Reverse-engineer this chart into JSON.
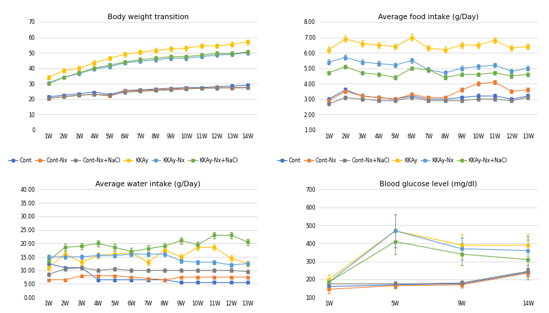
{
  "bw_weeks": [
    "1W",
    "2W",
    "3W",
    "4W",
    "5W",
    "6W",
    "7W",
    "8W",
    "9W",
    "10W",
    "11W",
    "12W",
    "13W",
    "14W"
  ],
  "bw_cont": [
    21.5,
    22.5,
    23.5,
    24.5,
    23.0,
    25.5,
    26.0,
    26.5,
    27.0,
    27.5,
    27.5,
    28.0,
    28.5,
    29.0
  ],
  "bw_cont_nx": [
    20.5,
    21.5,
    22.5,
    23.0,
    22.0,
    25.0,
    25.5,
    26.0,
    26.5,
    27.0,
    27.0,
    27.5,
    27.0,
    27.5
  ],
  "bw_cont_nacl": [
    20.5,
    21.5,
    22.5,
    23.0,
    22.5,
    24.5,
    25.0,
    25.5,
    26.0,
    26.5,
    27.0,
    27.0,
    27.5,
    27.5
  ],
  "bw_kkay": [
    34.0,
    38.5,
    40.0,
    43.5,
    46.5,
    49.0,
    50.5,
    51.5,
    52.5,
    53.0,
    54.5,
    54.5,
    55.5,
    57.0
  ],
  "bw_kkay_nx": [
    30.5,
    34.0,
    36.5,
    39.5,
    41.0,
    43.5,
    44.5,
    45.5,
    46.5,
    46.5,
    47.5,
    48.5,
    49.0,
    50.0
  ],
  "bw_kkay_nacl": [
    30.0,
    34.0,
    37.0,
    40.0,
    42.0,
    44.0,
    45.5,
    46.5,
    47.5,
    47.5,
    48.5,
    49.5,
    49.5,
    50.5
  ],
  "bw_err_cont": [
    0.5,
    0.5,
    0.5,
    0.5,
    0.5,
    0.5,
    0.5,
    0.5,
    0.5,
    0.5,
    0.5,
    0.5,
    0.5,
    0.5
  ],
  "bw_err_cont_nx": [
    0.4,
    0.4,
    0.4,
    0.4,
    0.4,
    0.4,
    0.4,
    0.4,
    0.4,
    0.4,
    0.4,
    0.4,
    0.4,
    0.4
  ],
  "bw_err_cont_nacl": [
    0.4,
    0.4,
    0.4,
    0.4,
    0.4,
    0.4,
    0.4,
    0.4,
    0.4,
    0.4,
    0.4,
    0.4,
    0.4,
    0.4
  ],
  "bw_err_kkay": [
    1.2,
    1.2,
    1.5,
    1.5,
    1.5,
    1.5,
    1.5,
    1.5,
    1.5,
    1.5,
    1.5,
    1.5,
    1.5,
    1.5
  ],
  "bw_err_kkay_nx": [
    1.0,
    1.0,
    1.2,
    1.2,
    1.2,
    1.2,
    1.2,
    1.2,
    1.2,
    1.2,
    1.2,
    1.2,
    1.2,
    1.2
  ],
  "bw_err_kkay_nacl": [
    1.0,
    1.0,
    1.2,
    1.2,
    1.2,
    1.2,
    1.2,
    1.2,
    1.2,
    1.2,
    1.2,
    1.2,
    1.2,
    1.2
  ],
  "fi_weeks": [
    "1W",
    "2W",
    "3W",
    "4W",
    "5W",
    "6W",
    "7W",
    "8W",
    "9W",
    "10W",
    "11W",
    "12W",
    "13W"
  ],
  "fi_cont": [
    3.0,
    3.6,
    3.2,
    3.1,
    3.0,
    3.2,
    3.0,
    3.0,
    3.1,
    3.2,
    3.2,
    3.0,
    3.2
  ],
  "fi_cont_nx": [
    2.9,
    3.5,
    3.2,
    3.1,
    3.0,
    3.3,
    3.1,
    3.1,
    3.6,
    4.0,
    4.1,
    3.5,
    3.6
  ],
  "fi_cont_nacl": [
    2.7,
    3.1,
    3.0,
    2.9,
    2.9,
    3.1,
    2.9,
    2.9,
    2.9,
    3.0,
    3.0,
    2.9,
    3.1
  ],
  "fi_kkay": [
    6.2,
    6.9,
    6.6,
    6.5,
    6.4,
    7.0,
    6.3,
    6.2,
    6.5,
    6.5,
    6.8,
    6.3,
    6.4
  ],
  "fi_kkay_nx": [
    5.4,
    5.7,
    5.4,
    5.3,
    5.2,
    5.5,
    4.9,
    4.7,
    5.0,
    5.1,
    5.2,
    4.8,
    5.0
  ],
  "fi_kkay_nacl": [
    4.7,
    5.1,
    4.7,
    4.6,
    4.4,
    5.0,
    4.9,
    4.4,
    4.6,
    4.6,
    4.7,
    4.5,
    4.6
  ],
  "fi_err_cont": [
    0.12,
    0.12,
    0.12,
    0.12,
    0.12,
    0.12,
    0.12,
    0.12,
    0.12,
    0.12,
    0.12,
    0.12,
    0.12
  ],
  "fi_err_cont_nx": [
    0.12,
    0.12,
    0.12,
    0.12,
    0.12,
    0.12,
    0.12,
    0.12,
    0.12,
    0.12,
    0.12,
    0.12,
    0.12
  ],
  "fi_err_cont_nacl": [
    0.1,
    0.1,
    0.1,
    0.1,
    0.1,
    0.1,
    0.1,
    0.1,
    0.1,
    0.1,
    0.1,
    0.1,
    0.1
  ],
  "fi_err_kkay": [
    0.18,
    0.2,
    0.18,
    0.18,
    0.18,
    0.22,
    0.18,
    0.18,
    0.18,
    0.18,
    0.18,
    0.18,
    0.18
  ],
  "fi_err_kkay_nx": [
    0.15,
    0.15,
    0.15,
    0.15,
    0.15,
    0.15,
    0.15,
    0.15,
    0.15,
    0.15,
    0.15,
    0.15,
    0.15
  ],
  "fi_err_kkay_nacl": [
    0.12,
    0.12,
    0.12,
    0.12,
    0.12,
    0.12,
    0.12,
    0.12,
    0.12,
    0.12,
    0.12,
    0.12,
    0.12
  ],
  "wi_weeks": [
    "1W",
    "2W",
    "3W",
    "4W",
    "5W",
    "6W",
    "7W",
    "8W",
    "9W",
    "10W",
    "11W",
    "12W",
    "13W"
  ],
  "wi_cont": [
    12.5,
    11.0,
    11.0,
    6.5,
    6.5,
    6.5,
    6.5,
    6.5,
    5.5,
    5.5,
    5.5,
    5.5,
    5.5
  ],
  "wi_cont_nx": [
    6.5,
    6.5,
    8.0,
    8.0,
    8.0,
    7.5,
    7.0,
    6.5,
    7.5,
    7.5,
    7.5,
    7.5,
    7.5
  ],
  "wi_cont_nacl": [
    8.5,
    10.5,
    11.0,
    10.0,
    10.5,
    10.0,
    10.0,
    10.0,
    10.0,
    10.0,
    10.0,
    10.0,
    9.5
  ],
  "wi_kkay": [
    11.0,
    16.0,
    13.0,
    15.5,
    16.0,
    16.5,
    13.0,
    17.5,
    15.0,
    18.5,
    18.5,
    14.5,
    12.5
  ],
  "wi_kkay_nx": [
    15.0,
    15.0,
    15.0,
    15.5,
    15.5,
    16.0,
    16.0,
    16.0,
    13.5,
    13.0,
    13.0,
    12.0,
    12.5
  ],
  "wi_kkay_nacl": [
    13.5,
    18.5,
    19.0,
    20.0,
    18.5,
    17.0,
    18.0,
    19.0,
    21.0,
    19.5,
    23.0,
    23.0,
    20.5
  ],
  "wi_err_cont": [
    0.5,
    0.5,
    0.5,
    0.5,
    0.5,
    0.5,
    0.5,
    0.5,
    0.5,
    0.5,
    0.5,
    0.5,
    0.5
  ],
  "wi_err_cont_nx": [
    0.4,
    0.4,
    0.4,
    0.4,
    0.4,
    0.4,
    0.4,
    0.4,
    0.4,
    0.4,
    0.4,
    0.4,
    0.4
  ],
  "wi_err_cont_nacl": [
    0.6,
    0.6,
    0.6,
    0.6,
    0.6,
    0.6,
    0.6,
    0.6,
    0.6,
    0.6,
    0.6,
    0.6,
    0.6
  ],
  "wi_err_kkay": [
    1.0,
    1.0,
    1.0,
    1.0,
    1.0,
    1.0,
    1.0,
    1.0,
    1.0,
    1.0,
    1.0,
    1.0,
    1.0
  ],
  "wi_err_kkay_nx": [
    0.8,
    0.8,
    0.8,
    0.8,
    0.8,
    0.8,
    0.8,
    0.8,
    0.8,
    0.8,
    0.8,
    0.8,
    0.8
  ],
  "wi_err_kkay_nacl": [
    1.2,
    1.2,
    1.2,
    1.2,
    1.2,
    1.2,
    1.2,
    1.2,
    1.2,
    1.2,
    1.2,
    1.2,
    1.2
  ],
  "bg_weeks": [
    "1W",
    "5W",
    "9W",
    "14W"
  ],
  "bg_cont": [
    160,
    170,
    175,
    240
  ],
  "bg_cont_nx": [
    145,
    165,
    170,
    235
  ],
  "bg_cont_nacl": [
    175,
    175,
    180,
    245
  ],
  "bg_kkay": [
    200,
    470,
    390,
    390
  ],
  "bg_kkay_nx": [
    185,
    470,
    370,
    360
  ],
  "bg_kkay_nacl": [
    185,
    410,
    340,
    310
  ],
  "bg_err_cont": [
    20,
    15,
    15,
    20
  ],
  "bg_err_cont_nx": [
    20,
    15,
    15,
    20
  ],
  "bg_err_cont_nacl": [
    15,
    12,
    12,
    18
  ],
  "bg_err_kkay": [
    25,
    90,
    60,
    60
  ],
  "bg_err_kkay_nx": [
    20,
    90,
    60,
    80
  ],
  "bg_err_kkay_nacl": [
    20,
    70,
    60,
    110
  ],
  "colors": {
    "cont": "#4472C4",
    "cont_nx": "#ED7D31",
    "cont_nacl": "#7F7F7F",
    "kkay": "#FFC000",
    "kkay_nx": "#5B9BD5",
    "kkay_nacl": "#70AD47"
  },
  "legend_labels": [
    "Cont",
    "Cont-Nx",
    "Cont-Nx+NaCl",
    "KKAy",
    "KKAy-Nx",
    "KKAy-Nx+NaCl"
  ],
  "titles": [
    "Body weight transition",
    "Average food intake (g/Day)",
    "Average water intake (g/Day)",
    "Blood glucose level (mg/dl)"
  ]
}
